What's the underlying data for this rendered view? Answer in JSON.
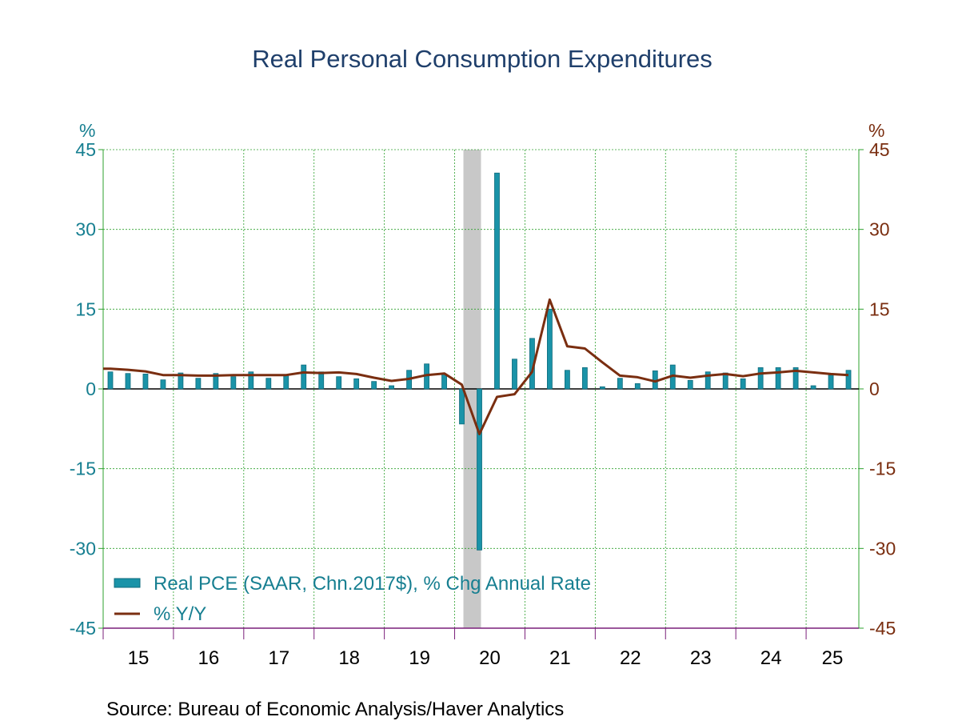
{
  "chart_data": {
    "type": "bar",
    "title": "Real Personal Consumption Expenditures",
    "source": "Source:  Bureau of Economic Analysis/Haver Analytics",
    "y_left": {
      "unit": "%",
      "ticks": [
        "45",
        "30",
        "15",
        "0",
        "-15",
        "-30",
        "-45"
      ],
      "ylim": [
        -45,
        45
      ]
    },
    "y_right": {
      "unit": "%",
      "ticks": [
        "45",
        "30",
        "15",
        "0",
        "-15",
        "-30",
        "-45"
      ],
      "ylim": [
        -45,
        45
      ]
    },
    "x_year_labels": [
      "15",
      "16",
      "17",
      "18",
      "19",
      "20",
      "21",
      "22",
      "23",
      "24",
      "25"
    ],
    "x_range": [
      2015.0,
      2025.75
    ],
    "recession": {
      "start": 2020.125,
      "end": 2020.375
    },
    "series": [
      {
        "name": "Real PCE (SAAR, Chn.2017$), % Chg Annual Rate",
        "type": "bar",
        "color": "#1a93a8",
        "x": [
          2015.0,
          2015.25,
          2015.5,
          2015.75,
          2016.0,
          2016.25,
          2016.5,
          2016.75,
          2017.0,
          2017.25,
          2017.5,
          2017.75,
          2018.0,
          2018.25,
          2018.5,
          2018.75,
          2019.0,
          2019.25,
          2019.5,
          2019.75,
          2020.0,
          2020.25,
          2020.5,
          2020.75,
          2021.0,
          2021.25,
          2021.5,
          2021.75,
          2022.0,
          2022.25,
          2022.5,
          2022.75,
          2023.0,
          2023.25,
          2023.5,
          2023.75,
          2024.0,
          2024.25,
          2024.5,
          2024.75,
          2025.0,
          2025.25,
          2025.5
        ],
        "values": [
          3.2,
          2.9,
          2.8,
          1.7,
          3.0,
          2.0,
          2.9,
          2.3,
          3.2,
          2.0,
          2.6,
          4.5,
          3.2,
          2.3,
          1.9,
          1.4,
          0.6,
          3.5,
          4.7,
          2.8,
          -6.6,
          -30.3,
          40.6,
          5.6,
          9.5,
          15.0,
          3.5,
          4.0,
          0.4,
          2.0,
          1.0,
          3.4,
          4.5,
          1.6,
          3.2,
          3.0,
          1.9,
          4.0,
          4.0,
          4.0,
          0.6,
          2.6,
          3.5
        ]
      },
      {
        "name": "% Y/Y",
        "type": "line",
        "color": "#7a2e10",
        "x": [
          2015.0,
          2015.25,
          2015.5,
          2015.75,
          2016.0,
          2016.25,
          2016.5,
          2016.75,
          2017.0,
          2017.25,
          2017.5,
          2017.75,
          2018.0,
          2018.25,
          2018.5,
          2018.75,
          2019.0,
          2019.25,
          2019.5,
          2019.75,
          2020.0,
          2020.25,
          2020.5,
          2020.75,
          2021.0,
          2021.25,
          2021.5,
          2021.75,
          2022.0,
          2022.25,
          2022.5,
          2022.75,
          2023.0,
          2023.25,
          2023.5,
          2023.75,
          2024.0,
          2024.25,
          2024.5,
          2024.75,
          2025.0,
          2025.25,
          2025.5
        ],
        "values": [
          3.8,
          3.6,
          3.3,
          2.6,
          2.6,
          2.5,
          2.5,
          2.6,
          2.6,
          2.6,
          2.6,
          3.1,
          3.0,
          3.1,
          2.8,
          2.1,
          1.5,
          1.9,
          2.6,
          2.9,
          0.8,
          -8.5,
          -1.5,
          -1.0,
          3.2,
          16.8,
          8.0,
          7.6,
          5.0,
          2.5,
          2.2,
          1.4,
          2.5,
          2.1,
          2.5,
          2.8,
          2.4,
          2.9,
          3.1,
          3.4,
          3.1,
          2.8,
          2.6
        ]
      }
    ],
    "legend_placement": "bottom-left",
    "grid": true
  }
}
